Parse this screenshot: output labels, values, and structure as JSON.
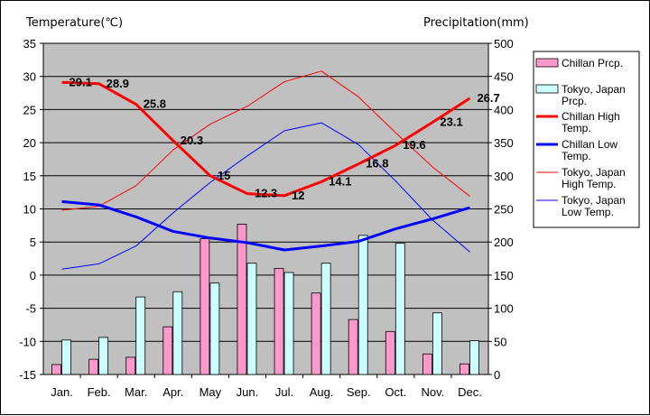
{
  "chart_data": {
    "type": "bar+line",
    "categories": [
      "Jan.",
      "Feb.",
      "Mar.",
      "Apr.",
      "May",
      "Jun.",
      "Jul.",
      "Aug.",
      "Sep.",
      "Oct.",
      "Nov.",
      "Dec."
    ],
    "left_axis": {
      "title": "Temperature(℃)",
      "range": [
        -15,
        35
      ],
      "ticks": [
        "35",
        "30",
        "25",
        "20",
        "15",
        "10",
        "5",
        "0",
        "-5",
        "-10",
        "-15"
      ]
    },
    "right_axis": {
      "title": "Precipitation(mm)",
      "range": [
        0,
        500
      ],
      "ticks": [
        "500",
        "450",
        "400",
        "350",
        "300",
        "250",
        "200",
        "150",
        "100",
        "50",
        "0"
      ]
    },
    "grid": true,
    "legend_position": "right",
    "bar_series": [
      {
        "name": "Chillan Prcp.",
        "color": "#ff99cc",
        "axis": "right",
        "values": [
          15,
          23,
          26,
          72,
          205,
          227,
          160,
          123,
          83,
          65,
          31,
          16
        ]
      },
      {
        "name": "Tokyo, Japan Prcp.",
        "color": "#ccffff",
        "axis": "right",
        "values": [
          52,
          56,
          117,
          125,
          138,
          168,
          154,
          168,
          210,
          198,
          93,
          51
        ]
      }
    ],
    "line_series": [
      {
        "name": "Chillan High Temp.",
        "legend": [
          "Chillan High",
          "Temp."
        ],
        "color": "#ff0000",
        "width": 3,
        "axis": "left",
        "values": [
          29.1,
          28.9,
          25.8,
          20.3,
          15,
          12.3,
          12,
          14.1,
          16.8,
          19.6,
          23.1,
          26.7
        ],
        "labels": [
          "29.1",
          "28.9",
          "25.8",
          "20.3",
          "15",
          "12.3",
          "12",
          "14.1",
          "16.8",
          "19.6",
          "23.1",
          "26.7"
        ]
      },
      {
        "name": "Chillan Low Temp.",
        "legend": [
          "Chillan Low",
          "Temp."
        ],
        "color": "#0000ff",
        "width": 3,
        "axis": "left",
        "values": [
          11.1,
          10.6,
          8.8,
          6.6,
          5.6,
          4.9,
          3.8,
          4.4,
          5.1,
          7,
          8.5,
          10.2
        ]
      },
      {
        "name": "Tokyo, Japan High Temp.",
        "legend": [
          "Tokyo, Japan",
          "High Temp."
        ],
        "color": "#ff0000",
        "width": 1,
        "axis": "left",
        "values": [
          9.8,
          10.4,
          13.5,
          18.9,
          22.8,
          25.5,
          29.2,
          30.8,
          26.9,
          21.5,
          16.3,
          11.9
        ]
      },
      {
        "name": "Tokyo, Japan Low Temp.",
        "legend": [
          "Tokyo, Japan",
          "Low Temp."
        ],
        "color": "#0000ff",
        "width": 1,
        "axis": "left",
        "values": [
          0.9,
          1.7,
          4.4,
          9.4,
          14,
          18,
          21.8,
          23,
          19.7,
          14.2,
          8.3,
          3.5
        ]
      }
    ],
    "legend_bar_labels": [
      [
        "Chillan Prcp."
      ],
      [
        "Tokyo, Japan",
        "Prcp."
      ]
    ]
  }
}
